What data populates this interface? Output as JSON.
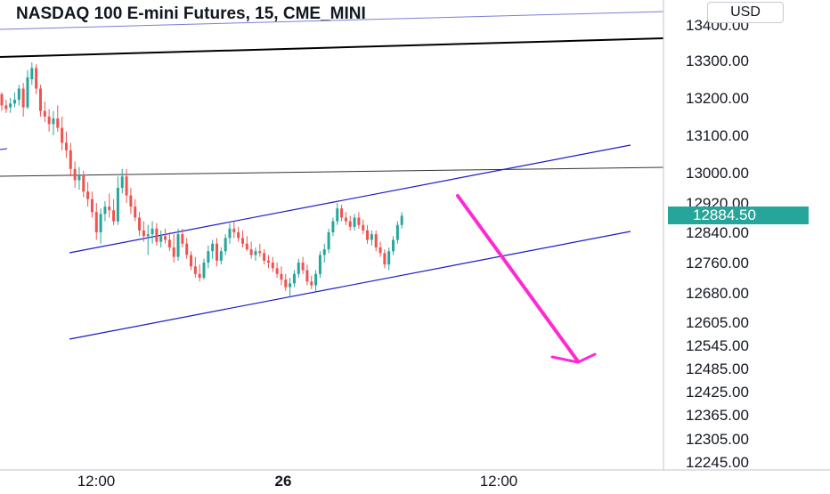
{
  "header": {
    "title": "NASDAQ 100 E-mini Futures, 15, CME_MINI"
  },
  "price_scale": {
    "currency": "USD"
  },
  "chart_data": {
    "type": "candlestick",
    "title": "NASDAQ 100 E-mini Futures, 15, CME_MINI",
    "y_axis": {
      "ticks": [
        "13400.00",
        "13300.00",
        "13200.00",
        "13100.00",
        "13000.00",
        "12920.00",
        "12840.00",
        "12760.00",
        "12680.00",
        "12605.00",
        "12545.00",
        "12485.00",
        "12425.00",
        "12365.00",
        "12305.00",
        "12245.00"
      ]
    },
    "x_axis": {
      "ticks": [
        {
          "label": "12:00",
          "bold": false
        },
        {
          "label": "26",
          "bold": true
        },
        {
          "label": "12:00",
          "bold": false
        }
      ]
    },
    "last_price": {
      "value": "12884.50",
      "color": "#26a69a"
    },
    "colors": {
      "up": "#26a69a",
      "down": "#ef5350",
      "channel": "#1a1ac8",
      "projection_arrow": "#ff29d1",
      "trend_line": "#000000"
    },
    "candles_ohlc": [
      [
        13210,
        13215,
        13165,
        13180
      ],
      [
        13180,
        13195,
        13160,
        13170
      ],
      [
        13175,
        13200,
        13160,
        13185
      ],
      [
        13185,
        13215,
        13175,
        13195
      ],
      [
        13195,
        13235,
        13180,
        13225
      ],
      [
        13225,
        13240,
        13150,
        13175
      ],
      [
        13175,
        13275,
        13170,
        13255
      ],
      [
        13250,
        13295,
        13235,
        13280
      ],
      [
        13280,
        13290,
        13210,
        13225
      ],
      [
        13225,
        13235,
        13150,
        13165
      ],
      [
        13165,
        13190,
        13135,
        13150
      ],
      [
        13150,
        13170,
        13110,
        13130
      ],
      [
        13130,
        13165,
        13100,
        13145
      ],
      [
        13145,
        13180,
        13110,
        13120
      ],
      [
        13120,
        13150,
        13060,
        13080
      ],
      [
        13080,
        13110,
        13040,
        13060
      ],
      [
        13060,
        13080,
        12990,
        13010
      ],
      [
        13010,
        13030,
        12960,
        12980
      ],
      [
        12980,
        13015,
        12955,
        12995
      ],
      [
        12995,
        13005,
        12935,
        12950
      ],
      [
        12950,
        12975,
        12910,
        12930
      ],
      [
        12930,
        12950,
        12880,
        12895
      ],
      [
        12895,
        12920,
        12820,
        12840
      ],
      [
        12840,
        12905,
        12810,
        12890
      ],
      [
        12890,
        12925,
        12870,
        12910
      ],
      [
        12910,
        12945,
        12880,
        12900
      ],
      [
        12900,
        12930,
        12860,
        12870
      ],
      [
        12870,
        12990,
        12860,
        12960
      ],
      [
        12960,
        13010,
        12945,
        12990
      ],
      [
        12990,
        13010,
        12920,
        12940
      ],
      [
        12940,
        12960,
        12890,
        12910
      ],
      [
        12910,
        12930,
        12870,
        12880
      ],
      [
        12880,
        12895,
        12830,
        12845
      ],
      [
        12845,
        12870,
        12815,
        12830
      ],
      [
        12830,
        12860,
        12780,
        12835
      ],
      [
        12835,
        12870,
        12810,
        12850
      ],
      [
        12850,
        12865,
        12805,
        12815
      ],
      [
        12815,
        12845,
        12800,
        12830
      ],
      [
        12830,
        12850,
        12810,
        12820
      ],
      [
        12820,
        12840,
        12790,
        12800
      ],
      [
        12800,
        12835,
        12760,
        12775
      ],
      [
        12775,
        12850,
        12765,
        12835
      ],
      [
        12835,
        12850,
        12800,
        12810
      ],
      [
        12810,
        12825,
        12770,
        12780
      ],
      [
        12780,
        12790,
        12740,
        12750
      ],
      [
        12750,
        12775,
        12720,
        12730
      ],
      [
        12730,
        12755,
        12710,
        12720
      ],
      [
        12720,
        12770,
        12715,
        12760
      ],
      [
        12760,
        12805,
        12745,
        12790
      ],
      [
        12790,
        12820,
        12770,
        12810
      ],
      [
        12810,
        12825,
        12750,
        12765
      ],
      [
        12765,
        12800,
        12755,
        12790
      ],
      [
        12790,
        12835,
        12780,
        12825
      ],
      [
        12825,
        12865,
        12810,
        12850
      ],
      [
        12850,
        12870,
        12825,
        12840
      ],
      [
        12840,
        12855,
        12815,
        12825
      ],
      [
        12825,
        12845,
        12800,
        12810
      ],
      [
        12810,
        12830,
        12790,
        12795
      ],
      [
        12795,
        12815,
        12770,
        12780
      ],
      [
        12780,
        12800,
        12765,
        12790
      ],
      [
        12790,
        12810,
        12775,
        12785
      ],
      [
        12785,
        12795,
        12755,
        12765
      ],
      [
        12765,
        12780,
        12745,
        12760
      ],
      [
        12760,
        12775,
        12735,
        12745
      ],
      [
        12745,
        12760,
        12720,
        12730
      ],
      [
        12730,
        12750,
        12700,
        12715
      ],
      [
        12715,
        12730,
        12685,
        12695
      ],
      [
        12695,
        12720,
        12670,
        12705
      ],
      [
        12705,
        12740,
        12695,
        12730
      ],
      [
        12730,
        12770,
        12720,
        12760
      ],
      [
        12760,
        12775,
        12730,
        12740
      ],
      [
        12740,
        12755,
        12700,
        12710
      ],
      [
        12710,
        12725,
        12690,
        12700
      ],
      [
        12700,
        12740,
        12685,
        12730
      ],
      [
        12730,
        12790,
        12720,
        12780
      ],
      [
        12780,
        12810,
        12760,
        12795
      ],
      [
        12795,
        12850,
        12785,
        12840
      ],
      [
        12840,
        12880,
        12830,
        12870
      ],
      [
        12870,
        12920,
        12860,
        12905
      ],
      [
        12905,
        12915,
        12870,
        12880
      ],
      [
        12880,
        12895,
        12860,
        12870
      ],
      [
        12870,
        12885,
        12845,
        12855
      ],
      [
        12855,
        12890,
        12845,
        12880
      ],
      [
        12880,
        12895,
        12850,
        12860
      ],
      [
        12860,
        12875,
        12835,
        12845
      ],
      [
        12845,
        12860,
        12810,
        12820
      ],
      [
        12820,
        12845,
        12805,
        12835
      ],
      [
        12835,
        12845,
        12790,
        12800
      ],
      [
        12800,
        12815,
        12775,
        12785
      ],
      [
        12785,
        12795,
        12745,
        12755
      ],
      [
        12755,
        12800,
        12740,
        12790
      ],
      [
        12790,
        12830,
        12780,
        12820
      ],
      [
        12820,
        12870,
        12810,
        12860
      ],
      [
        12860,
        12895,
        12850,
        12885
      ]
    ],
    "drawings": [
      "upper_trend_line",
      "resistance_line",
      "rising_channel",
      "projection_arrow"
    ]
  }
}
